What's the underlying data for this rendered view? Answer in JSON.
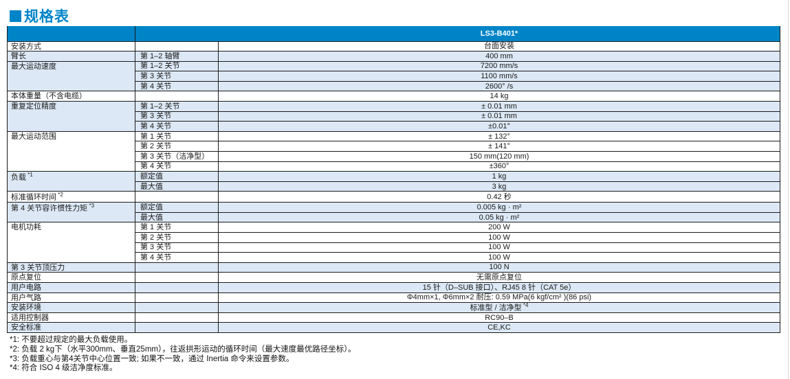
{
  "page": {
    "title": "规格表"
  },
  "colors": {
    "header_blue": "#0084c8",
    "row_blue": "#dce8f5",
    "ink": "#1a1a1a"
  },
  "table": {
    "header": {
      "model": "LS3-B401*"
    },
    "groups": [
      {
        "label": "安装方式",
        "note": "",
        "shade": false,
        "rows": [
          {
            "sub": "",
            "value": "台面安装",
            "valueNote": ""
          }
        ]
      },
      {
        "label": "臂长",
        "note": "",
        "shade": true,
        "rows": [
          {
            "sub": "第 1–2 轴臂",
            "value": "400 mm",
            "valueNote": ""
          }
        ]
      },
      {
        "label": "最大运动速度",
        "note": "",
        "shade": true,
        "rows": [
          {
            "sub": "第 1–2 关节",
            "value": "7200 mm/s",
            "valueNote": ""
          },
          {
            "sub": "第 3 关节",
            "value": "1100 mm/s",
            "valueNote": ""
          },
          {
            "sub": "第 4 关节",
            "value": "2600° /s",
            "valueNote": ""
          }
        ]
      },
      {
        "label": "本体重量（不含电缆）",
        "note": "",
        "shade": false,
        "rows": [
          {
            "sub": "",
            "value": "14 kg",
            "valueNote": ""
          }
        ]
      },
      {
        "label": "重复定位精度",
        "note": "",
        "shade": true,
        "rows": [
          {
            "sub": "第 1–2 关节",
            "value": "± 0.01 mm",
            "valueNote": ""
          },
          {
            "sub": "第 3 关节",
            "value": "± 0.01 mm",
            "valueNote": ""
          },
          {
            "sub": "第 4 关节",
            "value": "±0.01°",
            "valueNote": ""
          }
        ]
      },
      {
        "label": "最大运动范围",
        "note": "",
        "shade": false,
        "rows": [
          {
            "sub": "第 1 关节",
            "value": "± 132°",
            "valueNote": ""
          },
          {
            "sub": "第 2 关节",
            "value": "± 141°",
            "valueNote": ""
          },
          {
            "sub": "第 3 关节（洁净型）",
            "value": "150 mm(120 mm)",
            "valueNote": ""
          },
          {
            "sub": "第 4 关节",
            "value": "±360°",
            "valueNote": ""
          }
        ]
      },
      {
        "label": "负载",
        "note": "*1",
        "shade": true,
        "rows": [
          {
            "sub": "额定值",
            "value": "1 kg",
            "valueNote": ""
          },
          {
            "sub": "最大值",
            "value": "3 kg",
            "valueNote": ""
          }
        ]
      },
      {
        "label": "标准循环时间",
        "note": "*2",
        "shade": false,
        "rows": [
          {
            "sub": "",
            "value": "0.42 秒",
            "valueNote": ""
          }
        ]
      },
      {
        "label": "第 4 关节容许惯性力矩",
        "note": "*3",
        "shade": true,
        "rows": [
          {
            "sub": "额定值",
            "value": "0.005 kg · m²",
            "valueNote": ""
          },
          {
            "sub": "最大值",
            "value": "0.05 kg · m²",
            "valueNote": ""
          }
        ]
      },
      {
        "label": "电机功耗",
        "note": "",
        "shade": false,
        "rows": [
          {
            "sub": "第 1 关节",
            "value": "200 W",
            "valueNote": ""
          },
          {
            "sub": "第 2 关节",
            "value": "100 W",
            "valueNote": ""
          },
          {
            "sub": "第 3 关节",
            "value": "100 W",
            "valueNote": ""
          },
          {
            "sub": "第 4 关节",
            "value": "100 W",
            "valueNote": ""
          }
        ]
      },
      {
        "label": "第 3 关节顶压力",
        "note": "",
        "shade": true,
        "rows": [
          {
            "sub": "",
            "value": "100 N",
            "valueNote": ""
          }
        ]
      },
      {
        "label": "原点复位",
        "note": "",
        "shade": false,
        "rows": [
          {
            "sub": "",
            "value": "无需原点复位",
            "valueNote": ""
          }
        ]
      },
      {
        "label": "用户电路",
        "note": "",
        "shade": true,
        "rows": [
          {
            "sub": "",
            "value": "15 针（D–SUB 接口）、RJ45 8 针（CAT 5e）",
            "valueNote": ""
          }
        ]
      },
      {
        "label": "用户气路",
        "note": "",
        "shade": false,
        "rows": [
          {
            "sub": "",
            "value": "Φ4mm×1, Φ6mm×2  耐压:  0.59 MPa(6 kgf/cm² )(86 psi)",
            "valueNote": ""
          }
        ]
      },
      {
        "label": "安装环境",
        "note": "",
        "shade": true,
        "rows": [
          {
            "sub": "",
            "value": "标准型 / 洁净型",
            "valueNote": "*4"
          }
        ]
      },
      {
        "label": "适用控制器",
        "note": "",
        "shade": false,
        "rows": [
          {
            "sub": "",
            "value": "RC90–B",
            "valueNote": ""
          }
        ]
      },
      {
        "label": "安全标准",
        "note": "",
        "shade": true,
        "rows": [
          {
            "sub": "",
            "value": "CE,KC",
            "valueNote": ""
          }
        ]
      }
    ]
  },
  "footnotes": [
    "*1: 不要超过规定的最大负载使用。",
    "*2: 负载 2 kg下（水平300mm、垂直25mm），往返拱形运动的循环时间（最大速度最优路径坐标）。",
    "*3: 负载重心与第4关节中心位置一致; 如果不一致，通过 Inertia 命令来设置参数。",
    "*4: 符合 ISO 4 级洁净度标准。"
  ]
}
